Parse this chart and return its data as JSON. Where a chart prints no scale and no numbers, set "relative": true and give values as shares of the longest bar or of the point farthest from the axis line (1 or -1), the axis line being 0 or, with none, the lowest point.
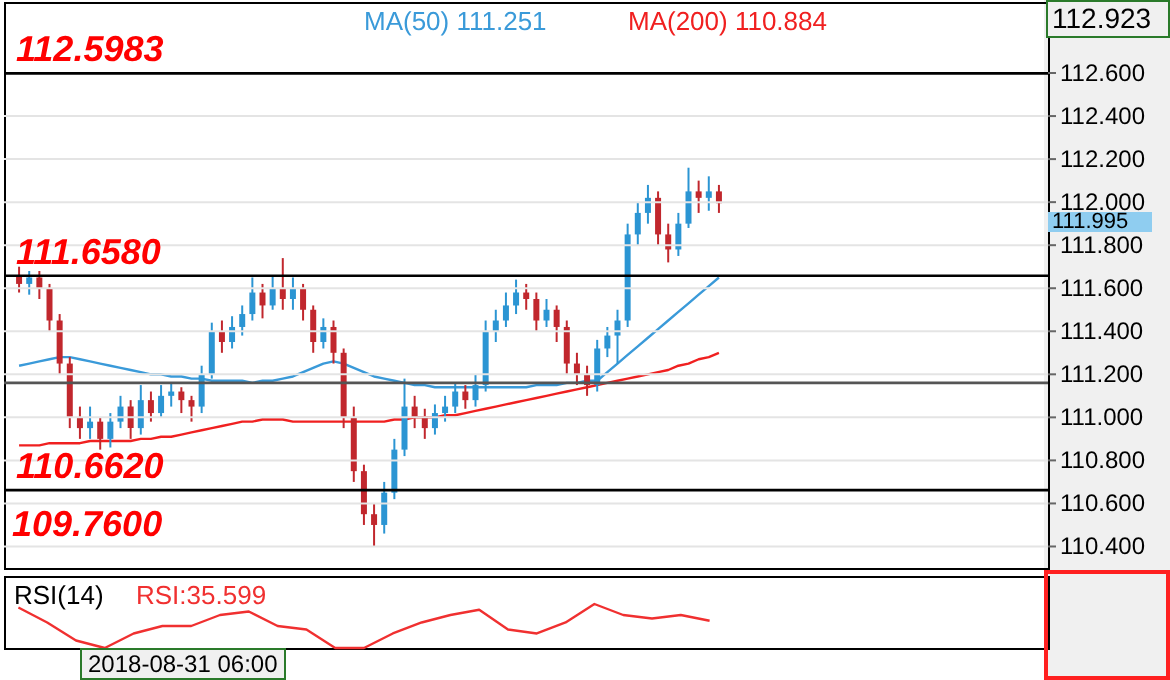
{
  "chart_data": [
    {
      "type": "candlestick",
      "categories": [
        null,
        null,
        null,
        null,
        null,
        null,
        null,
        null,
        null,
        null,
        null,
        null,
        null,
        null,
        null,
        null,
        null,
        null,
        null,
        null,
        null,
        null,
        null,
        null,
        null,
        null,
        null,
        null,
        null,
        null,
        null,
        null,
        null,
        null,
        null,
        null,
        null,
        null,
        null,
        null,
        null,
        null,
        null,
        null,
        null,
        null,
        null,
        null,
        null,
        null,
        null,
        null,
        null,
        null,
        null,
        null,
        null,
        null,
        null,
        null,
        null,
        null,
        null,
        null,
        null,
        null,
        null,
        null,
        null,
        null
      ],
      "ohlc": [
        [
          111.66,
          111.7,
          111.58,
          111.62
        ],
        [
          111.62,
          111.68,
          111.57,
          111.65
        ],
        [
          111.65,
          111.68,
          111.55,
          111.6
        ],
        [
          111.6,
          111.62,
          111.4,
          111.45
        ],
        [
          111.45,
          111.48,
          111.2,
          111.25
        ],
        [
          111.25,
          111.28,
          110.95,
          111.0
        ],
        [
          111.0,
          111.05,
          110.9,
          110.95
        ],
        [
          110.95,
          111.05,
          110.9,
          110.98
        ],
        [
          110.98,
          111.0,
          110.85,
          110.9
        ],
        [
          110.9,
          111.02,
          110.86,
          110.98
        ],
        [
          110.98,
          111.1,
          110.95,
          111.05
        ],
        [
          111.05,
          111.08,
          110.9,
          110.95
        ],
        [
          110.95,
          111.15,
          110.92,
          111.08
        ],
        [
          111.08,
          111.12,
          110.98,
          111.02
        ],
        [
          111.02,
          111.15,
          111.0,
          111.1
        ],
        [
          111.1,
          111.16,
          111.05,
          111.12
        ],
        [
          111.12,
          111.14,
          111.02,
          111.08
        ],
        [
          111.08,
          111.1,
          110.98,
          111.05
        ],
        [
          111.05,
          111.24,
          111.02,
          111.2
        ],
        [
          111.2,
          111.44,
          111.18,
          111.4
        ],
        [
          111.4,
          111.45,
          111.3,
          111.35
        ],
        [
          111.35,
          111.47,
          111.32,
          111.42
        ],
        [
          111.42,
          111.52,
          111.38,
          111.48
        ],
        [
          111.48,
          111.65,
          111.45,
          111.58
        ],
        [
          111.58,
          111.62,
          111.46,
          111.52
        ],
        [
          111.52,
          111.66,
          111.5,
          111.6
        ],
        [
          111.6,
          111.74,
          111.5,
          111.55
        ],
        [
          111.55,
          111.65,
          111.5,
          111.6
        ],
        [
          111.6,
          111.62,
          111.45,
          111.5
        ],
        [
          111.5,
          111.52,
          111.3,
          111.35
        ],
        [
          111.35,
          111.46,
          111.32,
          111.42
        ],
        [
          111.42,
          111.45,
          111.25,
          111.3
        ],
        [
          111.3,
          111.32,
          110.95,
          111.0
        ],
        [
          111.0,
          111.05,
          110.7,
          110.75
        ],
        [
          110.75,
          110.78,
          110.5,
          110.55
        ],
        [
          110.55,
          110.6,
          110.4,
          110.5
        ],
        [
          110.5,
          110.7,
          110.46,
          110.65
        ],
        [
          110.65,
          110.9,
          110.62,
          110.85
        ],
        [
          110.85,
          111.18,
          110.82,
          111.05
        ],
        [
          111.05,
          111.1,
          110.95,
          111.0
        ],
        [
          111.0,
          111.04,
          110.9,
          110.95
        ],
        [
          110.95,
          111.06,
          110.92,
          111.02
        ],
        [
          111.02,
          111.1,
          110.98,
          111.05
        ],
        [
          111.05,
          111.16,
          111.02,
          111.12
        ],
        [
          111.12,
          111.15,
          111.04,
          111.08
        ],
        [
          111.08,
          111.2,
          111.05,
          111.15
        ],
        [
          111.15,
          111.45,
          111.12,
          111.4
        ],
        [
          111.4,
          111.5,
          111.35,
          111.45
        ],
        [
          111.45,
          111.58,
          111.42,
          111.52
        ],
        [
          111.52,
          111.64,
          111.48,
          111.58
        ],
        [
          111.58,
          111.62,
          111.5,
          111.55
        ],
        [
          111.55,
          111.58,
          111.4,
          111.45
        ],
        [
          111.45,
          111.55,
          111.42,
          111.5
        ],
        [
          111.5,
          111.52,
          111.35,
          111.42
        ],
        [
          111.42,
          111.45,
          111.2,
          111.25
        ],
        [
          111.25,
          111.3,
          111.15,
          111.2
        ],
        [
          111.2,
          111.24,
          111.1,
          111.15
        ],
        [
          111.15,
          111.36,
          111.12,
          111.32
        ],
        [
          111.32,
          111.42,
          111.28,
          111.38
        ],
        [
          111.38,
          111.5,
          111.25,
          111.45
        ],
        [
          111.45,
          111.9,
          111.42,
          111.85
        ],
        [
          111.85,
          112.0,
          111.8,
          111.95
        ],
        [
          111.95,
          112.08,
          111.9,
          112.02
        ],
        [
          112.02,
          112.05,
          111.8,
          111.85
        ],
        [
          111.85,
          111.9,
          111.72,
          111.78
        ],
        [
          111.78,
          111.95,
          111.75,
          111.9
        ],
        [
          111.9,
          112.16,
          111.88,
          112.05
        ],
        [
          112.05,
          112.1,
          111.95,
          112.02
        ],
        [
          112.02,
          112.12,
          111.96,
          112.05
        ],
        [
          112.05,
          112.08,
          111.95,
          111.995
        ]
      ],
      "colors": [
        "#c1272d",
        "#2b95d3",
        "#c1272d",
        "#c1272d",
        "#c1272d",
        "#c1272d",
        "#c1272d",
        "#2b95d3",
        "#c1272d",
        "#2b95d3",
        "#2b95d3",
        "#c1272d",
        "#2b95d3",
        "#c1272d",
        "#2b95d3",
        "#2b95d3",
        "#c1272d",
        "#c1272d",
        "#2b95d3",
        "#2b95d3",
        "#c1272d",
        "#2b95d3",
        "#2b95d3",
        "#2b95d3",
        "#c1272d",
        "#2b95d3",
        "#c1272d",
        "#2b95d3",
        "#c1272d",
        "#c1272d",
        "#2b95d3",
        "#c1272d",
        "#c1272d",
        "#c1272d",
        "#c1272d",
        "#c1272d",
        "#2b95d3",
        "#2b95d3",
        "#2b95d3",
        "#c1272d",
        "#c1272d",
        "#2b95d3",
        "#2b95d3",
        "#2b95d3",
        "#c1272d",
        "#2b95d3",
        "#2b95d3",
        "#2b95d3",
        "#2b95d3",
        "#2b95d3",
        "#c1272d",
        "#c1272d",
        "#2b95d3",
        "#c1272d",
        "#c1272d",
        "#c1272d",
        "#c1272d",
        "#2b95d3",
        "#2b95d3",
        "#2b95d3",
        "#2b95d3",
        "#2b95d3",
        "#2b95d3",
        "#c1272d",
        "#c1272d",
        "#2b95d3",
        "#2b95d3",
        "#c1272d",
        "#2b95d3",
        "#c1272d"
      ],
      "series": [
        {
          "name": "MA(50)  111.251",
          "color": "#3a9ad9",
          "type": "line",
          "values": [
            111.24,
            111.25,
            111.26,
            111.27,
            111.28,
            111.28,
            111.27,
            111.26,
            111.25,
            111.24,
            111.23,
            111.22,
            111.21,
            111.2,
            111.2,
            111.19,
            111.19,
            111.18,
            111.18,
            111.17,
            111.17,
            111.17,
            111.17,
            111.16,
            111.17,
            111.17,
            111.18,
            111.19,
            111.21,
            111.23,
            111.25,
            111.26,
            111.25,
            111.23,
            111.21,
            111.19,
            111.18,
            111.17,
            111.16,
            111.15,
            111.15,
            111.14,
            111.14,
            111.14,
            111.14,
            111.14,
            111.14,
            111.14,
            111.14,
            111.14,
            111.14,
            111.15,
            111.15,
            111.15,
            111.16,
            111.16,
            111.17,
            111.17,
            111.21,
            111.25,
            111.29,
            111.33,
            111.37,
            111.41,
            111.45,
            111.49,
            111.53,
            111.57,
            111.61,
            111.65
          ]
        },
        {
          "name": "MA(200)  110.884",
          "color": "#f02020",
          "type": "line",
          "values": [
            110.87,
            110.87,
            110.87,
            110.88,
            110.88,
            110.88,
            110.88,
            110.89,
            110.89,
            110.89,
            110.89,
            110.89,
            110.9,
            110.9,
            110.91,
            110.91,
            110.92,
            110.93,
            110.94,
            110.95,
            110.96,
            110.97,
            110.98,
            110.98,
            110.99,
            110.99,
            110.99,
            110.98,
            110.98,
            110.98,
            110.98,
            110.98,
            110.98,
            110.98,
            110.98,
            110.98,
            110.98,
            110.99,
            110.99,
            111.0,
            111.0,
            111.0,
            111.01,
            111.01,
            111.02,
            111.03,
            111.04,
            111.05,
            111.06,
            111.07,
            111.08,
            111.09,
            111.1,
            111.11,
            111.12,
            111.13,
            111.14,
            111.15,
            111.16,
            111.17,
            111.18,
            111.19,
            111.2,
            111.21,
            111.22,
            111.24,
            111.25,
            111.27,
            111.28,
            111.3
          ]
        }
      ],
      "ylim": [
        110.3,
        112.93
      ],
      "yticks": [
        {
          "value": 110.4,
          "label": "110.400"
        },
        {
          "value": 110.6,
          "label": "110.600"
        },
        {
          "value": 110.8,
          "label": "110.800"
        },
        {
          "value": 111.0,
          "label": "111.000"
        },
        {
          "value": 111.2,
          "label": "111.200"
        },
        {
          "value": 111.4,
          "label": "111.400"
        },
        {
          "value": 111.6,
          "label": "111.600"
        },
        {
          "value": 111.8,
          "label": "111.800"
        },
        {
          "value": 112.0,
          "label": "112.000"
        },
        {
          "value": 112.2,
          "label": "112.200"
        },
        {
          "value": 112.4,
          "label": "112.400"
        },
        {
          "value": 112.6,
          "label": "112.600"
        }
      ],
      "ref_lines": [
        {
          "axis": "y",
          "value": 112.5983,
          "label": "112.5983",
          "color": "#000000"
        },
        {
          "axis": "y",
          "value": 111.658,
          "label": "111.6580",
          "color": "#000000"
        },
        {
          "axis": "y",
          "value": 111.16,
          "label": null,
          "color": "#555555"
        },
        {
          "axis": "y",
          "value": 110.662,
          "label": "110.6620",
          "color": "#000000"
        }
      ],
      "annotations": [
        "109.7600",
        "112.923",
        "111.995",
        "2018-08-31 06:00"
      ],
      "grid": "y",
      "legend": "top",
      "tick_labels": "y"
    },
    {
      "type": "line",
      "title": "RSI(14)",
      "relative": true,
      "categories": [
        null,
        null,
        null,
        null,
        null,
        null,
        null,
        null,
        null,
        null,
        null,
        null,
        null,
        null,
        null,
        null,
        null,
        null,
        null,
        null,
        null,
        null,
        null,
        null,
        null
      ],
      "series": [
        {
          "name": "RSI:35.599",
          "color": "#f03030",
          "values": [
            0.92,
            0.58,
            0.17,
            0,
            0.33,
            0.5,
            0.5,
            0.75,
            0.83,
            0.5,
            0.42,
            0,
            0,
            0.33,
            0.58,
            0.75,
            0.87,
            0.42,
            0.33,
            0.58,
            1,
            0.75,
            0.67,
            0.75,
            0.62
          ]
        }
      ],
      "legend": "top left",
      "tick_labels": false
    }
  ]
}
